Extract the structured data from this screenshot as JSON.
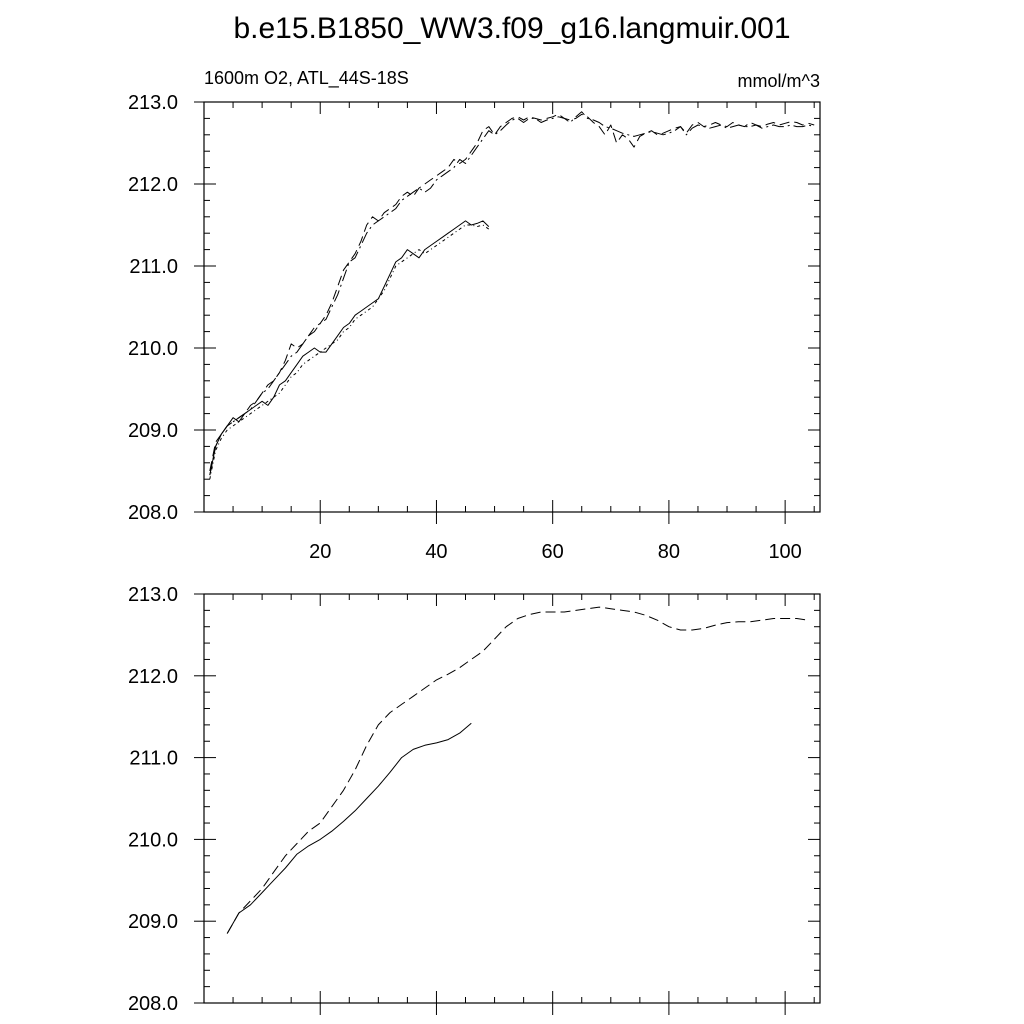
{
  "title": "b.e15.B1850_WW3.f09_g16.langmuir.001",
  "chart_data": [
    {
      "type": "line",
      "left_label": "1600m O2, ATL_44S-18S",
      "right_label": "mmol/m^3",
      "xlim": [
        0,
        106
      ],
      "ylim": [
        208,
        213
      ],
      "yticks": [
        208,
        209,
        210,
        211,
        212,
        213
      ],
      "ytick_labels": [
        "208.0",
        "209.0",
        "210.0",
        "211.0",
        "212.0",
        "213.0"
      ],
      "xticks": [
        20,
        40,
        60,
        80,
        100
      ],
      "xtick_labels": [
        "20",
        "40",
        "60",
        "80",
        "100"
      ],
      "grid": false,
      "series": [
        {
          "style": "dash",
          "x": [
            1,
            2,
            3,
            4,
            5,
            6,
            7,
            8,
            9,
            10,
            11,
            12,
            13,
            14,
            15,
            16,
            17,
            18,
            19,
            20,
            21,
            22,
            23,
            24,
            25,
            26,
            27,
            28,
            29,
            30,
            31,
            32,
            33,
            34,
            35,
            36,
            37,
            38,
            39,
            40,
            41,
            42,
            43,
            44,
            45,
            46,
            47,
            48,
            49,
            50,
            51,
            52,
            53,
            54,
            55,
            56,
            57,
            58,
            59,
            60,
            61,
            62,
            63,
            64,
            65,
            66,
            67,
            68,
            69,
            70,
            71,
            72,
            73,
            74,
            75,
            76,
            77,
            78,
            79,
            80,
            81,
            82,
            83,
            84,
            85,
            86,
            87,
            88,
            89,
            90,
            91,
            92,
            93,
            94,
            95,
            96,
            97,
            98,
            99,
            100,
            101,
            102,
            103,
            104,
            105
          ],
          "y": [
            208.5,
            208.85,
            208.95,
            209.05,
            209.1,
            209.15,
            209.2,
            209.3,
            209.35,
            209.45,
            209.55,
            209.6,
            209.7,
            209.85,
            210.05,
            210.0,
            210.05,
            210.15,
            210.25,
            210.3,
            210.4,
            210.55,
            210.75,
            210.95,
            211.05,
            211.15,
            211.3,
            211.5,
            211.6,
            211.55,
            211.65,
            211.7,
            211.75,
            211.85,
            211.9,
            211.85,
            211.95,
            212.0,
            212.05,
            212.1,
            212.15,
            212.2,
            212.3,
            212.25,
            212.3,
            212.4,
            212.5,
            212.65,
            212.7,
            212.6,
            212.7,
            212.75,
            212.8,
            212.82,
            212.78,
            212.82,
            212.8,
            212.78,
            212.8,
            212.82,
            212.85,
            212.8,
            212.78,
            212.8,
            212.85,
            212.82,
            212.75,
            212.7,
            212.6,
            212.72,
            212.5,
            212.6,
            212.55,
            212.45,
            212.58,
            212.62,
            212.65,
            212.6,
            212.62,
            212.65,
            212.68,
            212.7,
            212.62,
            212.72,
            212.75,
            212.7,
            212.72,
            212.75,
            212.72,
            212.7,
            212.75,
            212.72,
            212.7,
            212.75,
            212.72,
            212.7,
            212.73,
            212.75,
            212.72,
            212.74,
            212.76,
            212.75,
            212.72,
            212.74,
            212.72
          ]
        },
        {
          "style": "dashdot",
          "x": [
            1,
            2,
            3,
            4,
            5,
            6,
            7,
            8,
            9,
            10,
            11,
            12,
            13,
            14,
            15,
            16,
            17,
            18,
            19,
            20,
            21,
            22,
            23,
            24,
            25,
            26,
            27,
            28,
            29,
            30,
            31,
            32,
            33,
            34,
            35,
            36,
            37,
            38,
            39,
            40,
            41,
            42,
            43,
            44,
            45,
            46,
            47,
            48,
            49,
            50,
            51,
            52,
            53,
            54,
            55,
            56,
            57,
            58,
            59,
            60,
            61,
            62,
            63,
            64,
            65,
            66,
            67,
            68,
            69,
            70,
            71,
            72,
            73,
            74,
            75,
            76,
            77,
            78,
            79,
            80,
            81,
            82,
            83,
            84,
            85,
            86,
            87,
            88,
            89,
            90,
            91,
            92,
            93,
            94,
            95,
            96,
            97,
            98,
            99,
            100,
            101,
            102,
            103,
            104,
            105
          ],
          "y": [
            208.45,
            208.8,
            208.95,
            209.05,
            209.1,
            209.15,
            209.2,
            209.25,
            209.35,
            209.45,
            209.5,
            209.6,
            209.7,
            209.8,
            209.9,
            209.95,
            210.05,
            210.15,
            210.2,
            210.3,
            210.35,
            210.5,
            210.65,
            210.85,
            211.05,
            211.1,
            211.25,
            211.4,
            211.5,
            211.55,
            211.6,
            211.65,
            211.7,
            211.8,
            211.85,
            211.9,
            211.95,
            211.9,
            211.95,
            212.05,
            212.1,
            212.15,
            212.2,
            212.3,
            212.25,
            212.35,
            212.45,
            212.55,
            212.65,
            212.6,
            212.65,
            212.72,
            212.78,
            212.8,
            212.75,
            212.8,
            212.8,
            212.75,
            212.78,
            212.8,
            212.82,
            212.8,
            212.75,
            212.82,
            212.88,
            212.8,
            212.78,
            212.75,
            212.7,
            212.68,
            212.65,
            212.62,
            212.6,
            212.58,
            212.6,
            212.62,
            212.64,
            212.62,
            212.6,
            212.62,
            212.65,
            212.7,
            212.6,
            212.68,
            212.72,
            212.7,
            212.68,
            212.7,
            212.72,
            212.68,
            212.7,
            212.72,
            212.7,
            212.7,
            212.72,
            212.68,
            212.7,
            212.72,
            212.7,
            212.7,
            212.72,
            212.7,
            212.7,
            212.72,
            212.7
          ]
        },
        {
          "style": "solid",
          "x": [
            1,
            2,
            3,
            4,
            5,
            6,
            7,
            8,
            9,
            10,
            11,
            12,
            13,
            14,
            15,
            16,
            17,
            18,
            19,
            20,
            21,
            22,
            23,
            24,
            25,
            26,
            27,
            28,
            29,
            30,
            31,
            32,
            33,
            34,
            35,
            36,
            37,
            38,
            39,
            40,
            41,
            42,
            43,
            44,
            45,
            46,
            47,
            48,
            49
          ],
          "y": [
            208.45,
            208.8,
            208.95,
            209.05,
            209.15,
            209.1,
            209.2,
            209.25,
            209.3,
            209.35,
            209.3,
            209.4,
            209.55,
            209.6,
            209.7,
            209.8,
            209.9,
            209.95,
            210.0,
            209.95,
            209.95,
            210.05,
            210.15,
            210.25,
            210.3,
            210.4,
            210.45,
            210.5,
            210.55,
            210.6,
            210.75,
            210.9,
            211.05,
            211.1,
            211.2,
            211.15,
            211.1,
            211.2,
            211.25,
            211.3,
            211.35,
            211.4,
            211.45,
            211.5,
            211.55,
            211.5,
            211.52,
            211.55,
            211.48
          ]
        },
        {
          "style": "dashdot2",
          "x": [
            1,
            2,
            3,
            4,
            5,
            6,
            7,
            8,
            9,
            10,
            11,
            12,
            13,
            14,
            15,
            16,
            17,
            18,
            19,
            20,
            21,
            22,
            23,
            24,
            25,
            26,
            27,
            28,
            29,
            30,
            31,
            32,
            33,
            34,
            35,
            36,
            37,
            38,
            39,
            40,
            41,
            42,
            43,
            44,
            45,
            46,
            47,
            48,
            49
          ],
          "y": [
            208.4,
            208.75,
            208.9,
            209.0,
            209.05,
            209.1,
            209.15,
            209.2,
            209.25,
            209.3,
            209.35,
            209.4,
            209.45,
            209.55,
            209.65,
            209.7,
            209.8,
            209.85,
            209.9,
            209.95,
            210.0,
            210.05,
            210.1,
            210.2,
            210.25,
            210.35,
            210.4,
            210.45,
            210.5,
            210.6,
            210.7,
            210.85,
            211.0,
            211.05,
            211.1,
            211.15,
            211.2,
            211.15,
            211.2,
            211.25,
            211.3,
            211.35,
            211.4,
            211.45,
            211.5,
            211.5,
            211.48,
            211.5,
            211.45
          ]
        }
      ]
    },
    {
      "type": "line",
      "xlim": [
        0,
        106
      ],
      "ylim": [
        208,
        213
      ],
      "yticks": [
        208,
        209,
        210,
        211,
        212,
        213
      ],
      "ytick_labels": [
        "208.0",
        "209.0",
        "210.0",
        "211.0",
        "212.0",
        "213.0"
      ],
      "xticks": [
        20,
        40,
        60,
        80,
        100
      ],
      "grid": false,
      "series": [
        {
          "style": "dash",
          "x": [
            4,
            6,
            8,
            10,
            12,
            14,
            16,
            18,
            20,
            22,
            24,
            26,
            28,
            30,
            32,
            34,
            36,
            38,
            40,
            42,
            44,
            46,
            48,
            50,
            52,
            54,
            56,
            58,
            60,
            62,
            64,
            66,
            68,
            70,
            72,
            74,
            76,
            78,
            80,
            82,
            84,
            86,
            88,
            90,
            92,
            94,
            96,
            98,
            100,
            102,
            104
          ],
          "y": [
            208.85,
            209.1,
            209.25,
            209.4,
            209.6,
            209.8,
            209.95,
            210.1,
            210.2,
            210.4,
            210.6,
            210.85,
            211.15,
            211.4,
            211.55,
            211.65,
            211.75,
            211.85,
            211.95,
            212.02,
            212.1,
            212.2,
            212.3,
            212.45,
            212.6,
            212.7,
            212.75,
            212.78,
            212.78,
            212.78,
            212.8,
            212.82,
            212.84,
            212.82,
            212.8,
            212.78,
            212.74,
            212.68,
            212.6,
            212.56,
            212.56,
            212.58,
            212.62,
            212.65,
            212.66,
            212.66,
            212.68,
            212.7,
            212.7,
            212.7,
            212.68
          ]
        },
        {
          "style": "solid",
          "x": [
            4,
            6,
            8,
            10,
            12,
            14,
            16,
            18,
            20,
            22,
            24,
            26,
            28,
            30,
            32,
            34,
            36,
            38,
            40,
            42,
            44,
            46
          ],
          "y": [
            208.85,
            209.1,
            209.2,
            209.35,
            209.5,
            209.65,
            209.82,
            209.92,
            210.0,
            210.1,
            210.22,
            210.35,
            210.5,
            210.65,
            210.82,
            211.0,
            211.1,
            211.15,
            211.18,
            211.22,
            211.3,
            211.42
          ]
        }
      ]
    }
  ]
}
